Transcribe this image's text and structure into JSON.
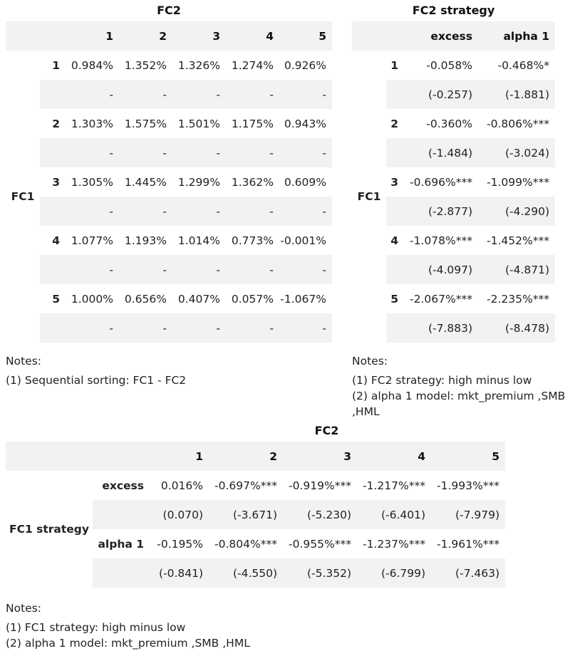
{
  "table1": {
    "caption": "FC2",
    "col_headers": [
      "1",
      "2",
      "3",
      "4",
      "5"
    ],
    "row_group_label": "FC1",
    "rows": [
      {
        "label": "1",
        "values": [
          "0.984%",
          "1.352%",
          "1.326%",
          "1.274%",
          "0.926%"
        ],
        "tstats": [
          "-",
          "-",
          "-",
          "-",
          "-"
        ]
      },
      {
        "label": "2",
        "values": [
          "1.303%",
          "1.575%",
          "1.501%",
          "1.175%",
          "0.943%"
        ],
        "tstats": [
          "-",
          "-",
          "-",
          "-",
          "-"
        ]
      },
      {
        "label": "3",
        "values": [
          "1.305%",
          "1.445%",
          "1.299%",
          "1.362%",
          "0.609%"
        ],
        "tstats": [
          "-",
          "-",
          "-",
          "-",
          "-"
        ]
      },
      {
        "label": "4",
        "values": [
          "1.077%",
          "1.193%",
          "1.014%",
          "0.773%",
          "-0.001%"
        ],
        "tstats": [
          "-",
          "-",
          "-",
          "-",
          "-"
        ]
      },
      {
        "label": "5",
        "values": [
          "1.000%",
          "0.656%",
          "0.407%",
          "0.057%",
          "-1.067%"
        ],
        "tstats": [
          "-",
          "-",
          "-",
          "-",
          "-"
        ]
      }
    ],
    "notes": [
      "Notes:",
      "(1) Sequential sorting: FC1 - FC2"
    ]
  },
  "table2": {
    "caption": "FC2 strategy",
    "col_headers": [
      "excess",
      "alpha 1"
    ],
    "row_group_label": "FC1",
    "rows": [
      {
        "label": "1",
        "values": [
          "-0.058%",
          "-0.468%*"
        ],
        "tstats": [
          "(-0.257)",
          "(-1.881)"
        ]
      },
      {
        "label": "2",
        "values": [
          "-0.360%",
          "-0.806%***"
        ],
        "tstats": [
          "(-1.484)",
          "(-3.024)"
        ]
      },
      {
        "label": "3",
        "values": [
          "-0.696%***",
          "-1.099%***"
        ],
        "tstats": [
          "(-2.877)",
          "(-4.290)"
        ]
      },
      {
        "label": "4",
        "values": [
          "-1.078%***",
          "-1.452%***"
        ],
        "tstats": [
          "(-4.097)",
          "(-4.871)"
        ]
      },
      {
        "label": "5",
        "values": [
          "-2.067%***",
          "-2.235%***"
        ],
        "tstats": [
          "(-7.883)",
          "(-8.478)"
        ]
      }
    ],
    "notes": [
      "Notes:",
      "(1) FC2 strategy: high minus low",
      "(2) alpha 1 model: mkt_premium ,SMB ,HML"
    ]
  },
  "table3": {
    "caption": "FC2",
    "col_headers": [
      "1",
      "2",
      "3",
      "4",
      "5"
    ],
    "row_group_label": "FC1 strategy",
    "rows": [
      {
        "label": "excess",
        "values": [
          "0.016%",
          "-0.697%***",
          "-0.919%***",
          "-1.217%***",
          "-1.993%***"
        ],
        "tstats": [
          "(0.070)",
          "(-3.671)",
          "(-5.230)",
          "(-6.401)",
          "(-7.979)"
        ]
      },
      {
        "label": "alpha 1",
        "values": [
          "-0.195%",
          "-0.804%***",
          "-0.955%***",
          "-1.237%***",
          "-1.961%***"
        ],
        "tstats": [
          "(-0.841)",
          "(-4.550)",
          "(-5.352)",
          "(-6.799)",
          "(-7.463)"
        ]
      }
    ],
    "notes": [
      "Notes:",
      "(1) FC1 strategy: high minus low",
      "(2) alpha 1 model: mkt_premium ,SMB ,HML"
    ]
  }
}
